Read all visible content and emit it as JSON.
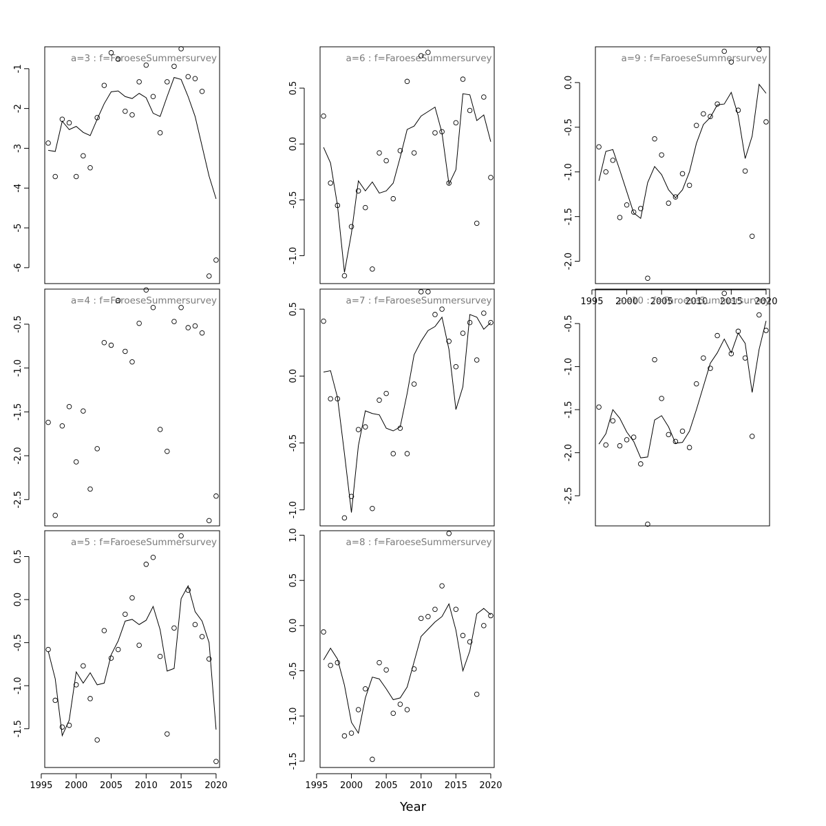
{
  "chart_data": {
    "type": "scatter",
    "xlabel": "Year",
    "x": [
      1996,
      1997,
      1998,
      1999,
      2000,
      2001,
      2002,
      2003,
      2004,
      2005,
      2006,
      2007,
      2008,
      2009,
      2010,
      2011,
      2012,
      2013,
      2014,
      2015,
      2016,
      2017,
      2018,
      2019,
      2020
    ],
    "x_ticks": [
      1995,
      2000,
      2005,
      2010,
      2015,
      2020
    ],
    "x_tick_labels": [
      "1995",
      "2000",
      "2005",
      "2010",
      "2015",
      "2020"
    ],
    "xlim": [
      1995.5,
      2020.5
    ],
    "panels": [
      {
        "title": "a=3  :  f=FaroeseSummersurvey",
        "ylim": [
          -6.4,
          -0.45
        ],
        "y_ticks": [
          -6,
          -5,
          -4,
          -3,
          -2,
          -1
        ],
        "y_tick_labels": [
          "-6",
          "-5",
          "-4",
          "-3",
          "-2",
          "-1"
        ],
        "points": [
          -2.87,
          -3.71,
          -2.27,
          -2.36,
          -3.71,
          -3.19,
          -3.49,
          -2.23,
          -1.42,
          -0.6,
          -0.76,
          -2.07,
          -2.16,
          -1.33,
          -0.91,
          -1.7,
          -2.61,
          -1.33,
          -0.94,
          -0.5,
          -1.2,
          -1.25,
          -1.57,
          -6.21,
          -5.81
        ],
        "fit": [
          -3.05,
          -3.08,
          -2.32,
          -2.53,
          -2.45,
          -2.6,
          -2.68,
          -2.27,
          -1.88,
          -1.58,
          -1.56,
          -1.7,
          -1.75,
          -1.62,
          -1.73,
          -2.12,
          -2.2,
          -1.7,
          -1.22,
          -1.27,
          -1.7,
          -2.2,
          -2.95,
          -3.7,
          -4.27
        ]
      },
      {
        "title": "a=4  :  f=FaroeseSummersurvey",
        "ylim": [
          -2.8,
          -0.1
        ],
        "y_ticks": [
          -2.5,
          -2.0,
          -1.5,
          -1.0,
          -0.5
        ],
        "y_tick_labels": [
          "-2.5",
          "-2.0",
          "-1.5",
          "-1.0",
          "-0.5"
        ],
        "points": [
          -1.62,
          -2.68,
          -1.66,
          -1.44,
          -2.07,
          -1.49,
          -2.38,
          -1.92,
          -0.71,
          -0.74,
          -0.23,
          -0.81,
          -0.93,
          -0.49,
          -0.11,
          -0.31,
          -1.7,
          -1.95,
          -0.47,
          -0.31,
          -0.54,
          -0.52,
          -0.6,
          -2.74,
          -2.46
        ]
      },
      {
        "title": "a=5  :  f=FaroeseSummersurvey",
        "ylim": [
          -1.95,
          0.8
        ],
        "y_ticks": [
          -1.5,
          -1.0,
          -0.5,
          0.0,
          0.5
        ],
        "y_tick_labels": [
          "-1.5",
          "-1.0",
          "-0.5",
          "0.0",
          "0.5"
        ],
        "points": [
          -0.58,
          -1.17,
          -1.48,
          -1.46,
          -0.99,
          -0.77,
          -1.15,
          -1.63,
          -0.36,
          -0.68,
          -0.58,
          -0.17,
          0.02,
          -0.53,
          0.41,
          0.49,
          -0.66,
          -1.56,
          -0.33,
          0.74,
          0.11,
          -0.29,
          -0.43,
          -0.69,
          -1.88
        ],
        "fit": [
          -0.6,
          -0.92,
          -1.58,
          -1.4,
          -0.84,
          -0.97,
          -0.85,
          -0.99,
          -0.97,
          -0.64,
          -0.48,
          -0.25,
          -0.23,
          -0.29,
          -0.24,
          -0.08,
          -0.35,
          -0.83,
          -0.8,
          0.01,
          0.16,
          -0.14,
          -0.25,
          -0.5,
          -1.51
        ]
      },
      {
        "title": "a=6  :  f=FaroeseSummersurvey",
        "ylim": [
          -1.25,
          0.87
        ],
        "y_ticks": [
          -1.0,
          -0.5,
          0.0,
          0.5
        ],
        "y_tick_labels": [
          "-1.0",
          "-0.5",
          "0.0",
          "0.5"
        ],
        "points": [
          0.25,
          -0.35,
          -0.55,
          -1.18,
          -0.74,
          -0.42,
          -0.57,
          -1.12,
          -0.08,
          -0.15,
          -0.49,
          -0.06,
          0.56,
          -0.08,
          0.79,
          0.82,
          0.1,
          0.11,
          -0.35,
          0.19,
          0.58,
          0.3,
          -0.71,
          0.42,
          -0.3
        ],
        "fit": [
          -0.03,
          -0.17,
          -0.55,
          -1.15,
          -0.8,
          -0.33,
          -0.42,
          -0.34,
          -0.44,
          -0.42,
          -0.35,
          -0.12,
          0.13,
          0.16,
          0.25,
          0.29,
          0.33,
          0.1,
          -0.36,
          -0.23,
          0.45,
          0.44,
          0.21,
          0.26,
          0.02
        ]
      },
      {
        "title": "a=7  :  f=FaroeseSummersurvey",
        "ylim": [
          -1.12,
          0.65
        ],
        "y_ticks": [
          -1.0,
          -0.5,
          0.0,
          0.5
        ],
        "y_tick_labels": [
          "-1.0",
          "-0.5",
          "0.0",
          "0.5"
        ],
        "points": [
          0.41,
          -0.17,
          -0.17,
          -1.06,
          -0.9,
          -0.4,
          -0.38,
          -0.99,
          -0.18,
          -0.13,
          -0.58,
          -0.39,
          -0.58,
          -0.06,
          0.63,
          0.63,
          0.46,
          0.5,
          0.26,
          0.07,
          0.32,
          0.4,
          0.12,
          0.47,
          0.4
        ],
        "fit": [
          0.03,
          0.04,
          -0.16,
          -0.58,
          -1.02,
          -0.52,
          -0.26,
          -0.28,
          -0.29,
          -0.39,
          -0.41,
          -0.38,
          -0.13,
          0.16,
          0.26,
          0.34,
          0.37,
          0.44,
          0.2,
          -0.25,
          -0.08,
          0.46,
          0.44,
          0.35,
          0.4
        ]
      },
      {
        "title": "a=8  :  f=FaroeseSummersurvey",
        "ylim": [
          -1.57,
          1.05
        ],
        "y_ticks": [
          -1.5,
          -1.0,
          -0.5,
          0.0,
          0.5,
          1.0
        ],
        "y_tick_labels": [
          "-1.5",
          "-1.0",
          "-0.5",
          "0.0",
          "0.5",
          "1.0"
        ],
        "points": [
          -0.07,
          -0.44,
          -0.41,
          -1.22,
          -1.19,
          -0.93,
          -0.7,
          -1.48,
          -0.41,
          -0.49,
          -0.97,
          -0.87,
          -0.93,
          -0.48,
          0.08,
          0.1,
          0.18,
          0.44,
          1.02,
          0.18,
          -0.11,
          -0.18,
          -0.76,
          -0.0,
          0.11
        ],
        "fit": [
          -0.38,
          -0.25,
          -0.37,
          -0.66,
          -1.07,
          -1.19,
          -0.8,
          -0.57,
          -0.59,
          -0.7,
          -0.82,
          -0.8,
          -0.68,
          -0.4,
          -0.12,
          -0.04,
          0.04,
          0.1,
          0.24,
          -0.05,
          -0.5,
          -0.28,
          0.13,
          0.19,
          0.12
        ]
      },
      {
        "title": "a=9  :  f=FaroeseSummersurvey",
        "ylim": [
          -2.25,
          0.4
        ],
        "y_ticks": [
          -2.0,
          -1.5,
          -1.0,
          -0.5,
          0.0
        ],
        "y_tick_labels": [
          "-2.0",
          "-1.5",
          "-1.0",
          "-0.5",
          "0.0"
        ],
        "points": [
          -0.72,
          -1.0,
          -0.87,
          -1.51,
          -1.37,
          -1.45,
          -1.41,
          -2.19,
          -0.63,
          -0.81,
          -1.35,
          -1.28,
          -1.02,
          -1.15,
          -0.48,
          -0.35,
          -0.38,
          -0.24,
          0.35,
          0.23,
          -0.31,
          -0.99,
          -1.72,
          0.37,
          -0.44
        ],
        "fit": [
          -1.1,
          -0.77,
          -0.75,
          -0.98,
          -1.22,
          -1.46,
          -1.52,
          -1.12,
          -0.94,
          -1.03,
          -1.2,
          -1.29,
          -1.2,
          -1.0,
          -0.68,
          -0.47,
          -0.39,
          -0.25,
          -0.24,
          -0.11,
          -0.37,
          -0.85,
          -0.6,
          -0.02,
          -0.12
        ]
      },
      {
        "title": "a=10  :  f=FaroeseSummersurvey",
        "ylim": [
          -2.85,
          -0.1
        ],
        "y_ticks": [
          -2.5,
          -2.0,
          -1.5,
          -1.0,
          -0.5
        ],
        "y_tick_labels": [
          "-2.5",
          "-2.0",
          "-1.5",
          "-1.0",
          "-0.5"
        ],
        "points": [
          -1.47,
          -1.91,
          -1.63,
          -1.92,
          -1.85,
          -1.82,
          -2.13,
          -2.83,
          -0.92,
          -1.37,
          -1.79,
          -1.87,
          -1.75,
          -1.94,
          -1.2,
          -0.9,
          -1.02,
          -0.64,
          -0.15,
          -0.85,
          -0.59,
          -0.9,
          -1.81,
          -0.4,
          -0.58
        ],
        "fit": [
          -1.9,
          -1.78,
          -1.5,
          -1.6,
          -1.76,
          -1.87,
          -2.06,
          -2.05,
          -1.62,
          -1.57,
          -1.7,
          -1.89,
          -1.88,
          -1.75,
          -1.5,
          -1.23,
          -0.96,
          -0.84,
          -0.68,
          -0.84,
          -0.61,
          -0.73,
          -1.3,
          -0.8,
          -0.47
        ]
      }
    ]
  }
}
